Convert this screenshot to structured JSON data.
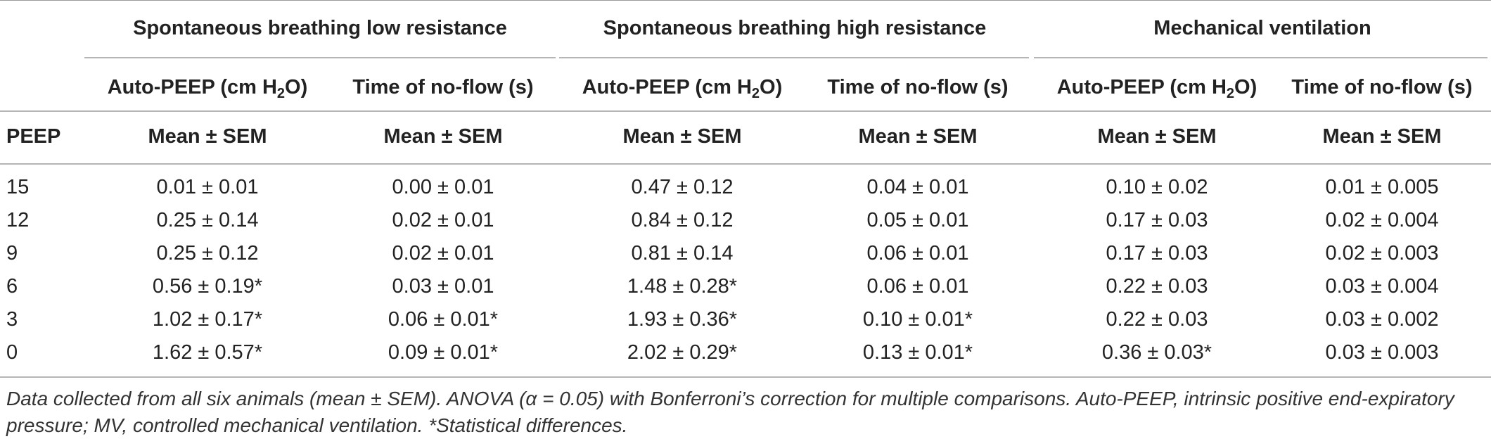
{
  "groups": [
    {
      "label": "Spontaneous breathing low resistance"
    },
    {
      "label": "Spontaneous breathing high resistance"
    },
    {
      "label": "Mechanical ventilation"
    }
  ],
  "columns": {
    "auto_peep": {
      "prefix": "Auto-PEEP (cm H",
      "sub": "2",
      "suffix": "O)"
    },
    "no_flow": "Time of no-flow (s)"
  },
  "row_header": "PEEP",
  "stat_label": "Mean ± SEM",
  "rows": [
    {
      "peep": "15",
      "values": [
        "0.01 ± 0.01",
        "0.00 ± 0.01",
        "0.47 ± 0.12",
        "0.04 ± 0.01",
        "0.10 ± 0.02",
        "0.01 ± 0.005"
      ]
    },
    {
      "peep": "12",
      "values": [
        "0.25 ± 0.14",
        "0.02 ± 0.01",
        "0.84 ± 0.12",
        "0.05 ± 0.01",
        "0.17 ± 0.03",
        "0.02 ± 0.004"
      ]
    },
    {
      "peep": "9",
      "values": [
        "0.25 ± 0.12",
        "0.02 ± 0.01",
        "0.81 ± 0.14",
        "0.06 ± 0.01",
        "0.17 ± 0.03",
        "0.02 ± 0.003"
      ]
    },
    {
      "peep": "6",
      "values": [
        "0.56 ± 0.19*",
        "0.03 ± 0.01",
        "1.48 ± 0.28*",
        "0.06 ± 0.01",
        "0.22 ± 0.03",
        "0.03 ± 0.004"
      ]
    },
    {
      "peep": "3",
      "values": [
        "1.02 ± 0.17*",
        "0.06 ± 0.01*",
        "1.93 ± 0.36*",
        "0.10 ± 0.01*",
        "0.22 ± 0.03",
        "0.03 ± 0.002"
      ]
    },
    {
      "peep": "0",
      "values": [
        "1.62 ± 0.57*",
        "0.09 ± 0.01*",
        "2.02 ± 0.29*",
        "0.13 ± 0.01*",
        "0.36 ± 0.03*",
        "0.03 ± 0.003"
      ]
    }
  ],
  "caption": "Data collected from all six animals (mean ± SEM). ANOVA (α = 0.05) with Bonferroni’s correction for multiple comparisons. Auto-PEEP, intrinsic positive end-expiratory pressure; MV, controlled mechanical ventilation. *Statistical differences."
}
